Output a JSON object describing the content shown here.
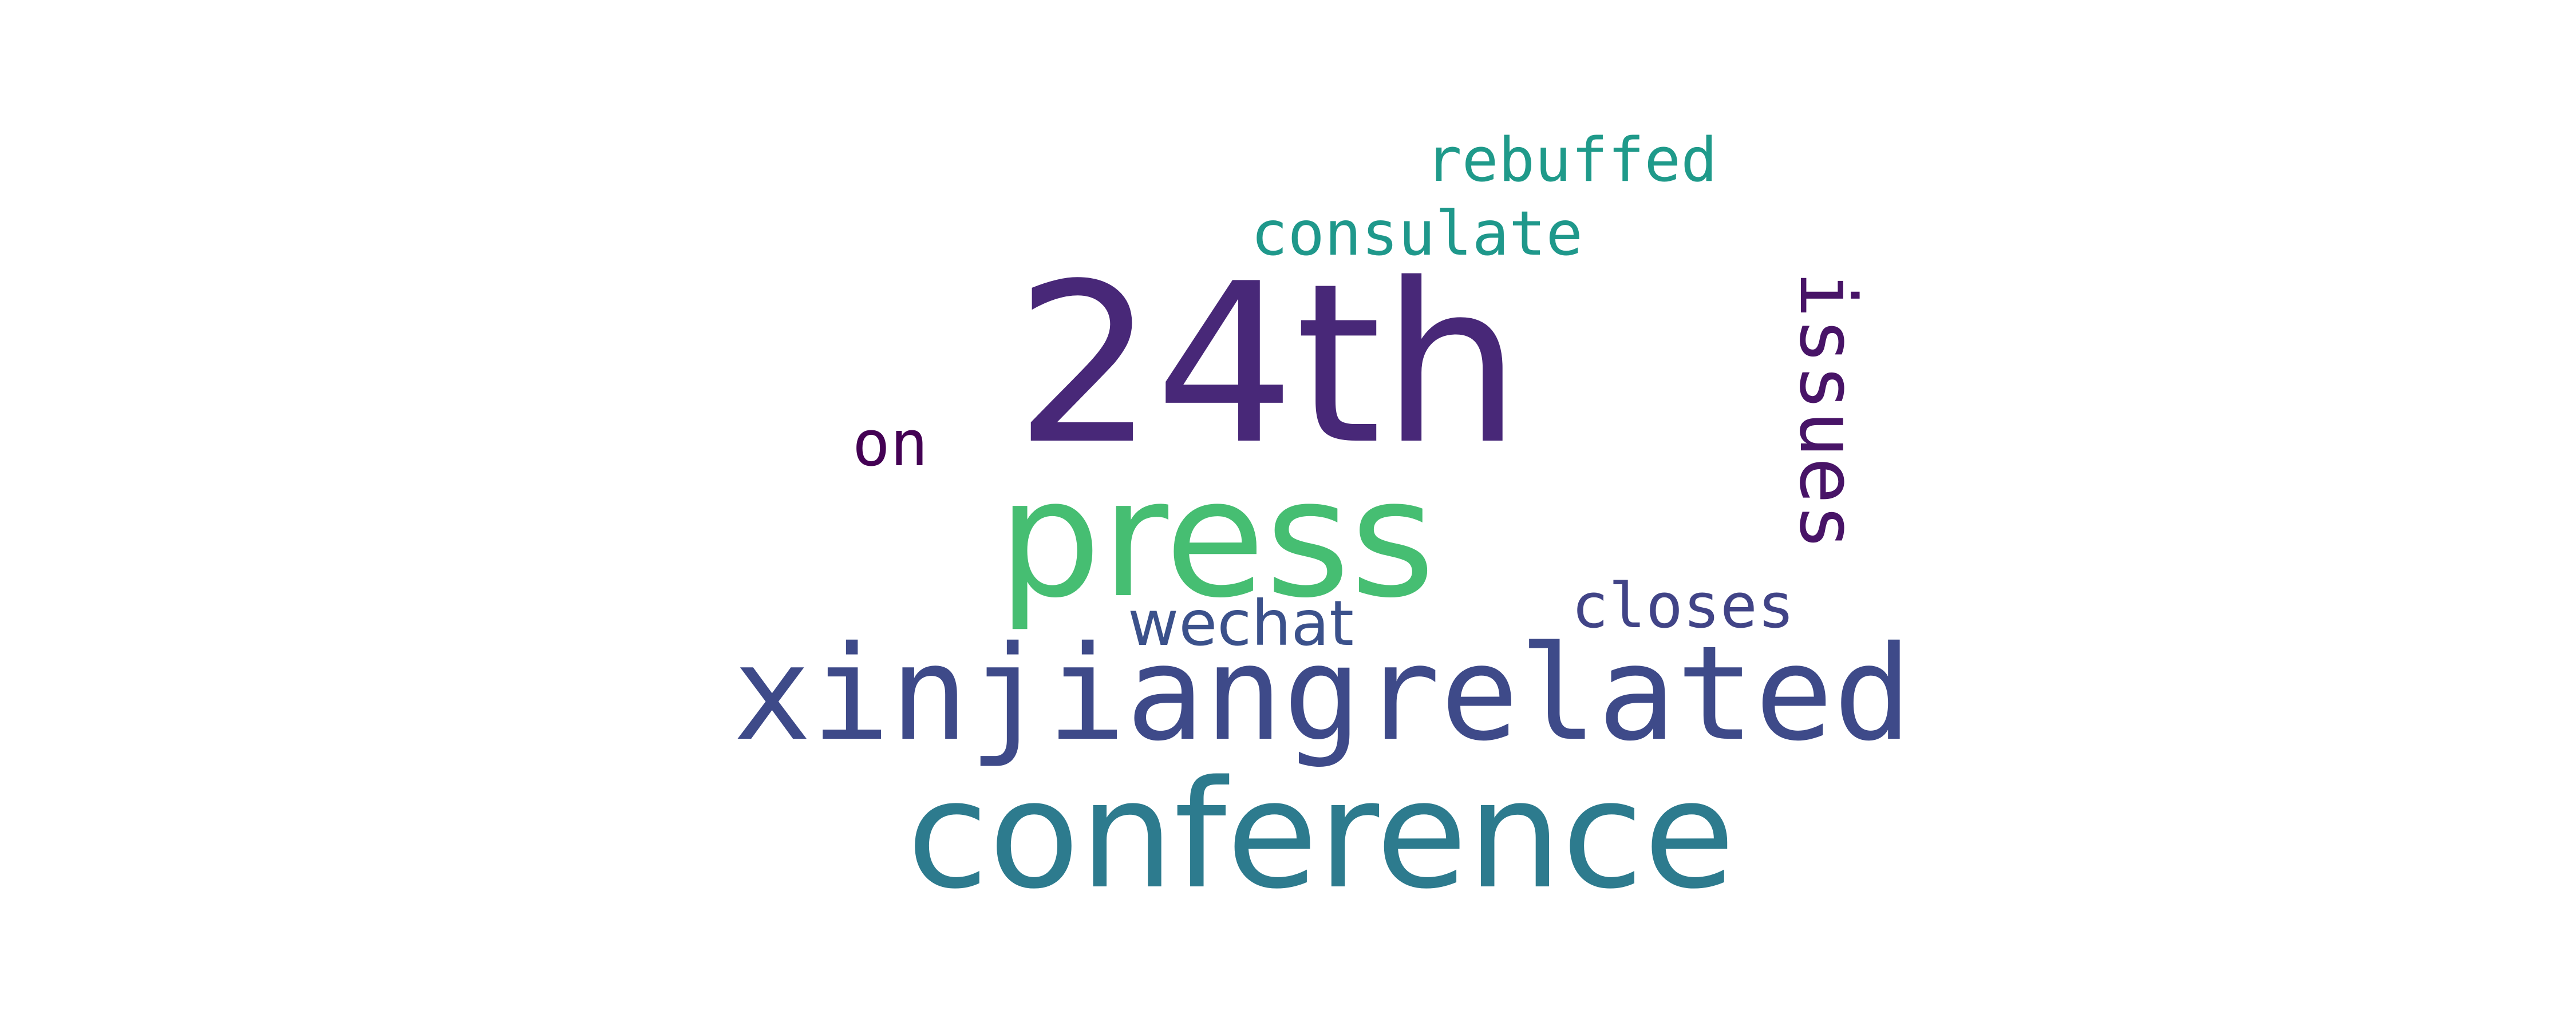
{
  "words": {
    "w24th": {
      "text": "24th",
      "color": "#482878"
    },
    "press": {
      "text": "press",
      "color": "#46be72"
    },
    "xinjiangrelated": {
      "text": "xinjiangrelated",
      "color": "#3e4a89"
    },
    "conference": {
      "text": "conference",
      "color": "#2d7b8e"
    },
    "issues": {
      "text": "issues",
      "color": "#481467"
    },
    "consulate": {
      "text": "consulate",
      "color": "#1f988b"
    },
    "rebuffed": {
      "text": "rebuffed",
      "color": "#1f9a8a"
    },
    "on": {
      "text": "on",
      "color": "#440154"
    },
    "wechat": {
      "text": "wechat",
      "color": "#3b518b"
    },
    "closes": {
      "text": "closes",
      "color": "#414487"
    }
  }
}
